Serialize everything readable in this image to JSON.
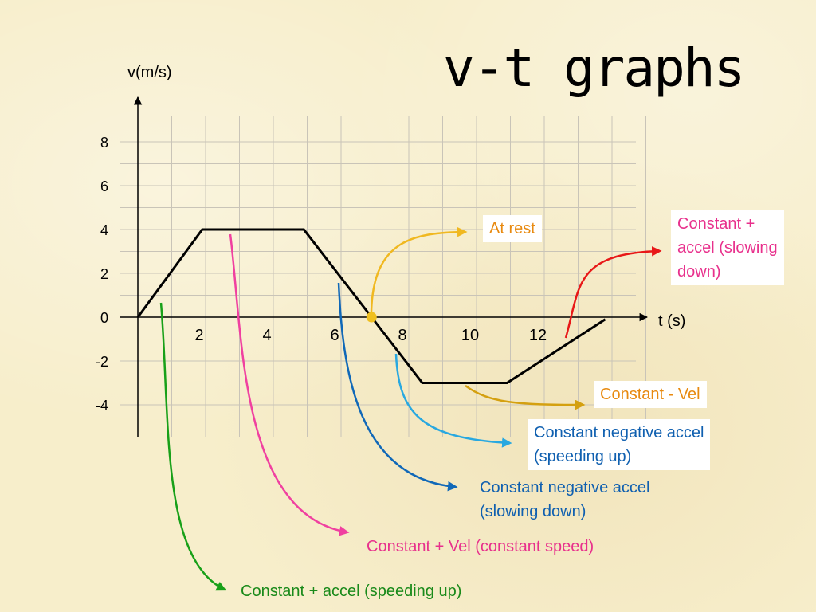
{
  "title": "v-t graphs",
  "chart_data": {
    "type": "line",
    "title": "v-t graphs",
    "xlabel": "t (s)",
    "ylabel": "v(m/s)",
    "xticks": [
      2,
      4,
      6,
      8,
      10,
      12
    ],
    "yticks": [
      8,
      6,
      4,
      2,
      0,
      -2,
      -4
    ],
    "xlim": [
      0,
      15
    ],
    "ylim": [
      -5.5,
      10
    ],
    "grid": true,
    "series": [
      {
        "color": "#000000",
        "points": [
          {
            "x": 0,
            "y": 0
          },
          {
            "x": 1.9,
            "y": 4
          },
          {
            "x": 4.9,
            "y": 4
          },
          {
            "x": 6.9,
            "y": 0
          },
          {
            "x": 8.4,
            "y": -3
          },
          {
            "x": 10.9,
            "y": -3
          },
          {
            "x": 13.8,
            "y": -0.1
          }
        ]
      }
    ],
    "marker": {
      "x": 6.9,
      "y": 0,
      "color": "#f0c020"
    },
    "annotations": [
      {
        "id": "at-rest",
        "text": [
          "At rest"
        ],
        "color": "#e88a10",
        "box": true
      },
      {
        "id": "const-pos-accel-slowing",
        "text": [
          "Constant +",
          "accel (slowing",
          "down)"
        ],
        "color": "#e8308c",
        "box": true
      },
      {
        "id": "const-neg-vel",
        "text": [
          "Constant - Vel"
        ],
        "color": "#e88a10",
        "box": true
      },
      {
        "id": "const-neg-accel-speeding",
        "text": [
          "Constant negative accel",
          "(speeding up)"
        ],
        "color": "#1060b0",
        "box": true
      },
      {
        "id": "const-neg-accel-slowing",
        "text": [
          "Constant negative accel",
          "(slowing down)"
        ],
        "color": "#1060b0",
        "box": false
      },
      {
        "id": "const-pos-vel",
        "text": [
          "Constant + Vel (constant speed)"
        ],
        "color": "#e8308c",
        "box": false
      },
      {
        "id": "const-pos-accel-speeding",
        "text": [
          "Constant + accel (speeding up)"
        ],
        "color": "#1a8a1a",
        "box": false
      }
    ],
    "arrow_colors": {
      "at-rest": "#f0b820",
      "const-pos-accel-slowing": "#e81818",
      "const-neg-vel": "#d4a010",
      "const-neg-accel-speeding": "#28a8e0",
      "const-neg-accel-slowing": "#1068b8",
      "const-pos-vel": "#f040a0",
      "const-pos-accel-speeding": "#18a018"
    }
  }
}
